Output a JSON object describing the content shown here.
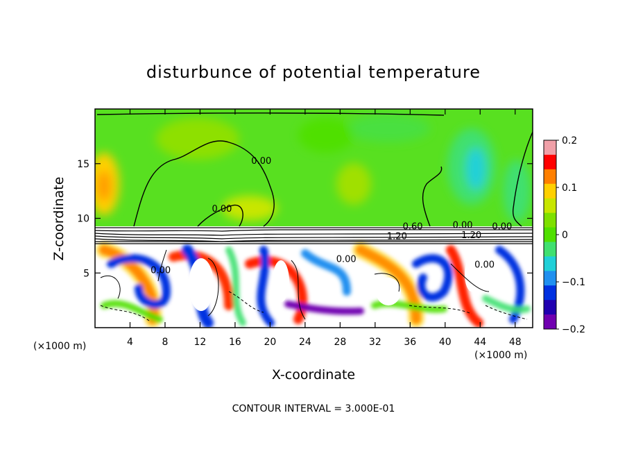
{
  "chart_data": {
    "type": "heatmap",
    "title": "disturbunce of potential temperature",
    "xlabel": "X-coordinate",
    "ylabel": "Z-coordinate",
    "x_unit": "(×1000 m)",
    "x_unit_right": "(×1000 m)",
    "xlim": [
      0,
      50
    ],
    "ylim": [
      0,
      20
    ],
    "x_ticks": [
      4,
      8,
      12,
      16,
      20,
      24,
      28,
      32,
      36,
      40,
      44,
      48
    ],
    "y_ticks": [
      5,
      10,
      15
    ],
    "colorbar": {
      "min": -0.2,
      "max": 0.2,
      "ticks": [
        "0.2",
        "0.1",
        "0",
        "−0.1",
        "−0.2"
      ],
      "colors": [
        "#f0a0a8",
        "#ff0000",
        "#ff7f00",
        "#ffd000",
        "#c8e600",
        "#7ee000",
        "#50e000",
        "#40e070",
        "#20d0d8",
        "#2090f0",
        "#0030e0",
        "#2000b0",
        "#7000b0"
      ]
    },
    "contour_labels": [
      {
        "text": "0.00",
        "x": 19,
        "z": 15
      },
      {
        "text": "0.00",
        "x": 14.5,
        "z": 10.6
      },
      {
        "text": "0.00",
        "x": 7.5,
        "z": 5
      },
      {
        "text": "0.60",
        "x": 36.3,
        "z": 9
      },
      {
        "text": "1.20",
        "x": 34.5,
        "z": 8.1
      },
      {
        "text": "0.00",
        "x": 42,
        "z": 9.1
      },
      {
        "text": "1.20",
        "x": 43,
        "z": 8.2
      },
      {
        "text": "0.00",
        "x": 46.5,
        "z": 9
      },
      {
        "text": "0.00",
        "x": 28.7,
        "z": 6
      },
      {
        "text": "0.00",
        "x": 44.5,
        "z": 5.5
      }
    ],
    "contour_interval_text": "CONTOUR INTERVAL = 3.000E-01",
    "grid": false
  }
}
